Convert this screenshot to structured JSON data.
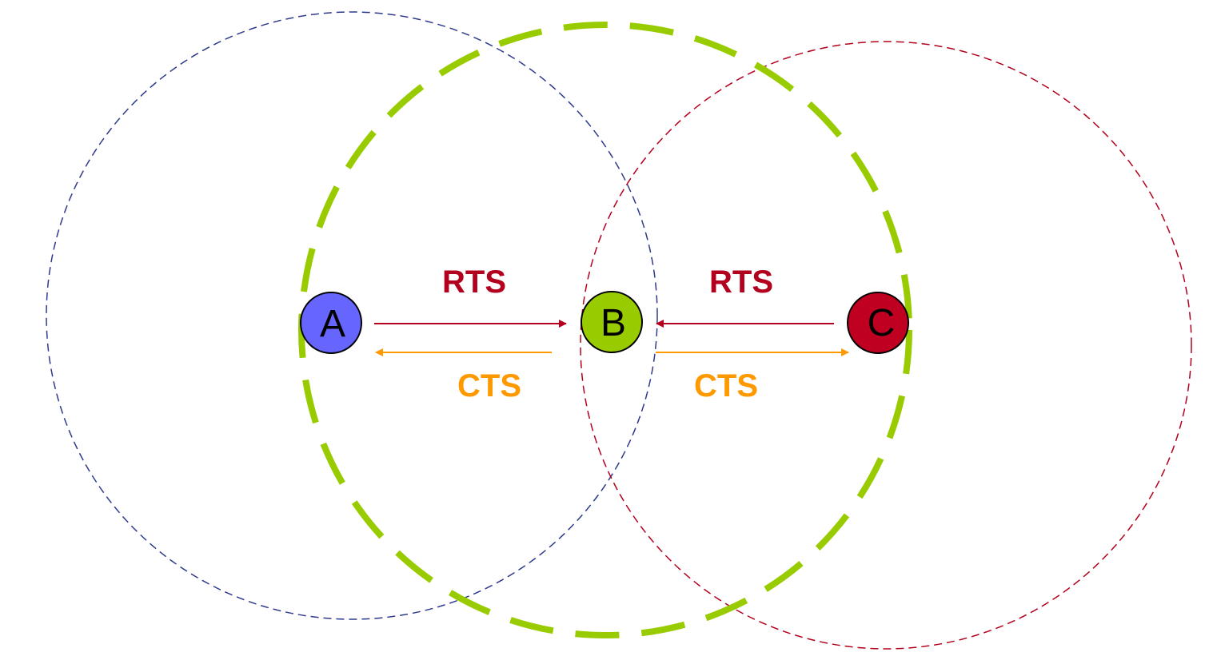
{
  "colors": {
    "range_a": "#2e3a8c",
    "range_b": "#99cc00",
    "range_c": "#b3001e",
    "node_a_fill": "#6666ff",
    "node_b_fill": "#99cc00",
    "node_c_fill": "#c00020",
    "rts": "#b3001e",
    "cts": "#ff9900",
    "node_stroke": "#000000"
  },
  "nodes": {
    "a": {
      "label": "A"
    },
    "b": {
      "label": "B"
    },
    "c": {
      "label": "C"
    }
  },
  "messages": {
    "rts_ab": {
      "label": "RTS"
    },
    "rts_cb": {
      "label": "RTS"
    },
    "cts_ba": {
      "label": "CTS"
    },
    "cts_bc": {
      "label": "CTS"
    }
  }
}
